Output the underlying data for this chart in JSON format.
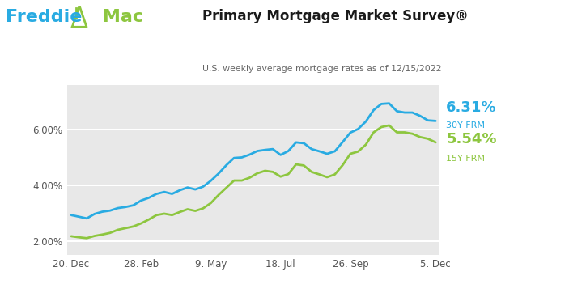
{
  "title": "Primary Mortgage Market Survey®",
  "subtitle": "U.S. weekly average mortgage rates as of 12/15/2022",
  "color_30y": "#29abe2",
  "color_15y": "#8dc63f",
  "color_freddie_blue": "#29abe2",
  "color_freddie_green": "#8dc63f",
  "label_30y_rate": "6.31%",
  "label_30y_name": "30Y FRM",
  "label_15y_rate": "5.54%",
  "label_15y_name": "15Y FRM",
  "yticks": [
    2.0,
    4.0,
    6.0
  ],
  "ylim": [
    1.5,
    7.6
  ],
  "xtick_labels": [
    "20. Dec",
    "28. Feb",
    "9. May",
    "18. Jul",
    "26. Sep",
    "5. Dec"
  ],
  "bg_color": "#ffffff",
  "plot_bg_color": "#e8e8e8",
  "grid_color": "#ffffff",
  "rate_30y": [
    2.93,
    2.87,
    2.81,
    2.97,
    3.05,
    3.09,
    3.18,
    3.22,
    3.28,
    3.45,
    3.55,
    3.69,
    3.76,
    3.69,
    3.82,
    3.92,
    3.85,
    3.95,
    4.16,
    4.42,
    4.72,
    4.98,
    5.0,
    5.1,
    5.23,
    5.27,
    5.3,
    5.09,
    5.23,
    5.54,
    5.51,
    5.3,
    5.22,
    5.13,
    5.22,
    5.55,
    5.89,
    6.02,
    6.29,
    6.7,
    6.92,
    6.94,
    6.66,
    6.61,
    6.61,
    6.49,
    6.33,
    6.31
  ],
  "rate_15y": [
    2.17,
    2.13,
    2.1,
    2.18,
    2.23,
    2.29,
    2.4,
    2.46,
    2.52,
    2.63,
    2.77,
    2.93,
    2.98,
    2.93,
    3.04,
    3.14,
    3.08,
    3.17,
    3.36,
    3.65,
    3.91,
    4.17,
    4.17,
    4.27,
    4.43,
    4.52,
    4.48,
    4.31,
    4.4,
    4.75,
    4.71,
    4.48,
    4.39,
    4.29,
    4.39,
    4.72,
    5.13,
    5.21,
    5.46,
    5.9,
    6.09,
    6.15,
    5.9,
    5.9,
    5.85,
    5.73,
    5.67,
    5.54
  ],
  "x_values": [
    0,
    1,
    2,
    3,
    4,
    5,
    6,
    7,
    8,
    9,
    10,
    11,
    12,
    13,
    14,
    15,
    16,
    17,
    18,
    19,
    20,
    21,
    22,
    23,
    24,
    25,
    26,
    27,
    28,
    29,
    30,
    31,
    32,
    33,
    34,
    35,
    36,
    37,
    38,
    39,
    40,
    41,
    42,
    43,
    44,
    45,
    46,
    47
  ],
  "xtick_positions": [
    0,
    9,
    18,
    27,
    36,
    47
  ],
  "xlim": [
    -0.5,
    47.5
  ]
}
